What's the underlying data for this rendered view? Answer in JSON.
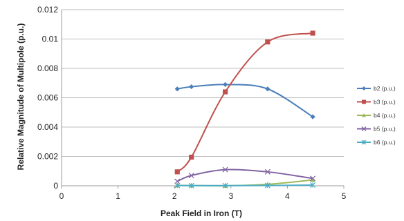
{
  "chart_data": {
    "type": "line",
    "title": "",
    "xlabel": "Peak Field in Iron (T)",
    "ylabel": "Relative Magnitude of Multipole (p.u.)",
    "xlim": [
      0,
      5
    ],
    "ylim": [
      0,
      0.012
    ],
    "xticks": [
      "0",
      "1",
      "2",
      "3",
      "4",
      "5"
    ],
    "yticks": [
      "0",
      "0.002",
      "0.004",
      "0.006",
      "0.008",
      "0.01",
      "0.012"
    ],
    "grid": "horizontal",
    "legend_position": "right",
    "series": [
      {
        "name": "b2 (p.u.)",
        "color": "#4a7ebb",
        "marker": "diamond",
        "x": [
          2.05,
          2.3,
          2.9,
          3.65,
          4.45
        ],
        "y": [
          0.0066,
          0.00675,
          0.0069,
          0.0066,
          0.0047
        ]
      },
      {
        "name": "b3 (p.u.)",
        "color": "#c0504d",
        "marker": "square",
        "x": [
          2.05,
          2.3,
          2.9,
          3.65,
          4.45
        ],
        "y": [
          0.00095,
          0.00195,
          0.0064,
          0.0098,
          0.0104
        ]
      },
      {
        "name": "b4 (p.u.)",
        "color": "#9bbb59",
        "marker": "triangle",
        "x": [
          2.05,
          2.3,
          2.9,
          3.65,
          4.45
        ],
        "y": [
          3e-05,
          2e-05,
          0.0,
          0.0001,
          0.0004
        ]
      },
      {
        "name": "b5 (p.u.)",
        "color": "#8064a2",
        "marker": "x",
        "x": [
          2.05,
          2.3,
          2.9,
          3.65,
          4.45
        ],
        "y": [
          0.0003,
          0.0007,
          0.0011,
          0.00095,
          0.0005
        ]
      },
      {
        "name": "b6 (p.u.)",
        "color": "#4bacc6",
        "marker": "star",
        "x": [
          2.05,
          2.3,
          2.9,
          3.65,
          4.45
        ],
        "y": [
          2e-05,
          1e-05,
          1e-05,
          2e-05,
          5e-05
        ]
      }
    ]
  }
}
